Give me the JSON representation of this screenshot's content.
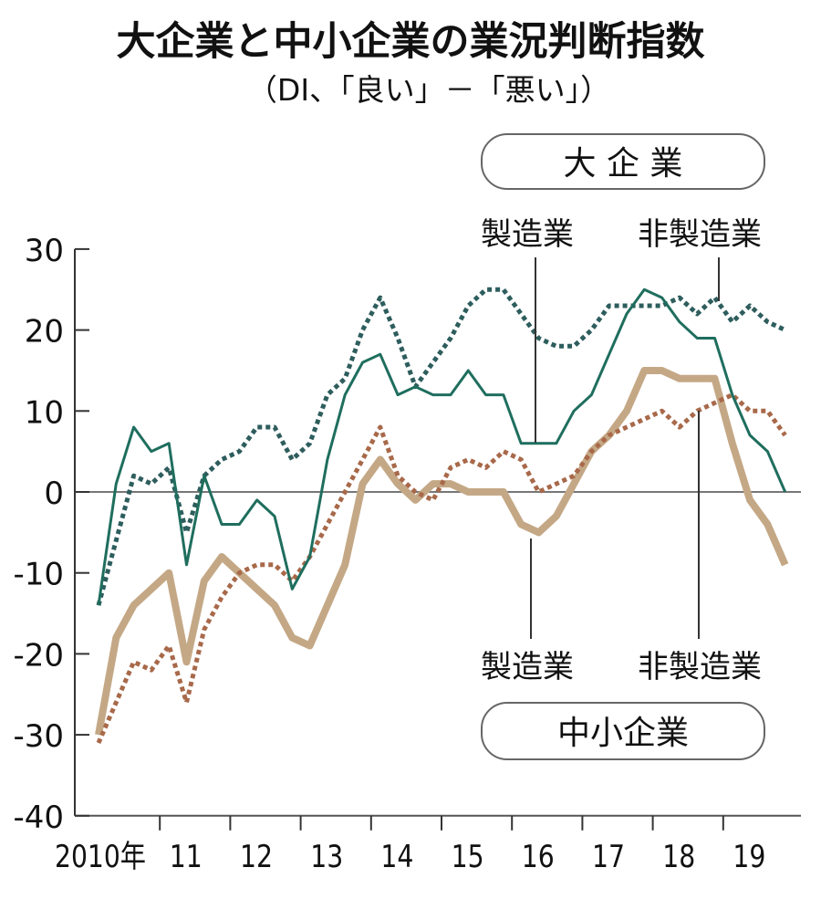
{
  "chart_data": {
    "type": "line",
    "title": "大企業と中小企業の業況判断指数",
    "subtitle": "（DI、「良い」－「悪い」）",
    "xlabel": "",
    "ylabel": "",
    "ylim": [
      -40,
      30
    ],
    "yticks": [
      30,
      20,
      10,
      0,
      -10,
      -20,
      -30,
      -40
    ],
    "ytick_labels": [
      "30",
      "20",
      "10",
      "0",
      "-10",
      "-20",
      "-30",
      "-40"
    ],
    "xtick_labels": [
      "2010年",
      "11",
      "12",
      "13",
      "14",
      "15",
      "16",
      "17",
      "18",
      "19"
    ],
    "x_frequency": "quarterly, 2010Q1–2019Q4",
    "grid": false,
    "groups": [
      {
        "label": "大 企 業",
        "series_labels": [
          "製造業",
          "非製造業"
        ]
      },
      {
        "label": "中小企業",
        "series_labels": [
          "製造業",
          "非製造業"
        ]
      }
    ],
    "series": [
      {
        "name": "大企業 製造業",
        "style": "solid-thin",
        "color": "#1f6e5e",
        "values": [
          -14,
          1,
          8,
          5,
          6,
          -9,
          2,
          -4,
          -4,
          -1,
          -3,
          -12,
          -8,
          4,
          12,
          16,
          17,
          12,
          13,
          12,
          12,
          15,
          12,
          12,
          6,
          6,
          6,
          10,
          12,
          17,
          22,
          25,
          24,
          21,
          19,
          19,
          12,
          7,
          5,
          0
        ]
      },
      {
        "name": "大企業 非製造業",
        "style": "dotted",
        "color": "#2e5d5d",
        "values": [
          -14,
          -6,
          2,
          1,
          3,
          -5,
          2,
          4,
          5,
          8,
          8,
          4,
          6,
          12,
          14,
          20,
          24,
          19,
          13,
          16,
          19,
          23,
          25,
          25,
          22,
          19,
          18,
          18,
          20,
          23,
          23,
          23,
          23,
          24,
          22,
          24,
          21,
          23,
          21,
          20
        ]
      },
      {
        "name": "中小企業 製造業",
        "style": "solid-thick",
        "color": "#c4a886",
        "values": [
          -30,
          -18,
          -14,
          -12,
          -10,
          -21,
          -11,
          -8,
          -10,
          -12,
          -14,
          -18,
          -19,
          -14,
          -9,
          1,
          4,
          1,
          -1,
          1,
          1,
          0,
          0,
          0,
          -4,
          -5,
          -3,
          1,
          5,
          7,
          10,
          15,
          15,
          14,
          14,
          14,
          6,
          -1,
          -4,
          -9
        ]
      },
      {
        "name": "中小企業 非製造業",
        "style": "dotted",
        "color": "#a8694a",
        "values": [
          -31,
          -26,
          -21,
          -22,
          -19,
          -26,
          -17,
          -13,
          -10,
          -9,
          -9,
          -11,
          -8,
          -4,
          0,
          4,
          8,
          2,
          0,
          -1,
          3,
          4,
          3,
          5,
          4,
          0,
          1,
          2,
          5,
          7,
          8,
          9,
          10,
          8,
          10,
          11,
          12,
          10,
          10,
          7
        ]
      }
    ]
  }
}
